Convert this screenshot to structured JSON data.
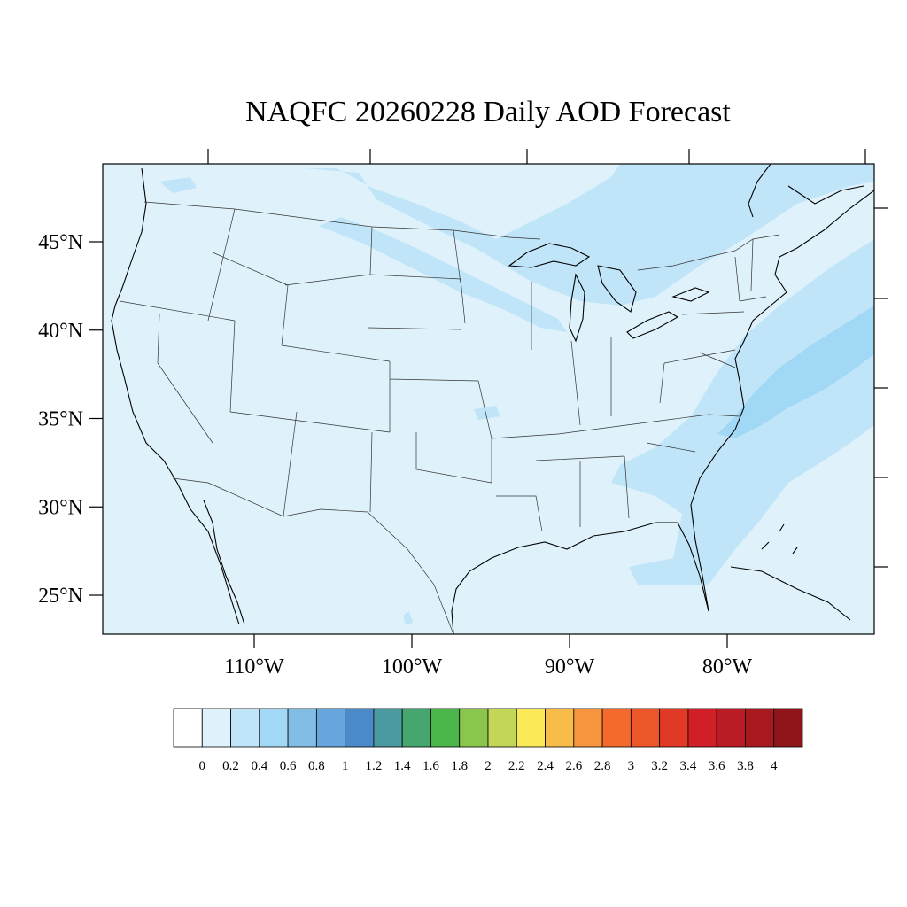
{
  "title": "NAQFC 20260228 Daily AOD Forecast",
  "map": {
    "lat_ticks": [
      {
        "value": 45,
        "label": "45°N"
      },
      {
        "value": 40,
        "label": "40°N"
      },
      {
        "value": 35,
        "label": "35°N"
      },
      {
        "value": 30,
        "label": "30°N"
      },
      {
        "value": 25,
        "label": "25°N"
      }
    ],
    "lon_ticks": [
      {
        "value": -110,
        "label": "110°W"
      },
      {
        "value": -100,
        "label": "100°W"
      },
      {
        "value": -90,
        "label": "90°W"
      },
      {
        "value": -80,
        "label": "80°W"
      }
    ],
    "background_color": "#dff2fb",
    "plume_colors": [
      "#c0e5f8",
      "#a1d8f5"
    ]
  },
  "colorbar": {
    "labels": [
      "0",
      "0.2",
      "0.4",
      "0.6",
      "0.8",
      "1",
      "1.2",
      "1.4",
      "1.6",
      "1.8",
      "2",
      "2.2",
      "2.4",
      "2.6",
      "2.8",
      "3",
      "3.2",
      "3.4",
      "3.6",
      "3.8",
      "4"
    ],
    "colors": [
      "#ffffff",
      "#dff2fb",
      "#c0e5f8",
      "#a1d8f5",
      "#82bde6",
      "#67a6dc",
      "#4a8ac8",
      "#4a9aa0",
      "#46a66f",
      "#4ab64a",
      "#8ac64c",
      "#c4d655",
      "#f9e858",
      "#f8bd48",
      "#f7963e",
      "#f36a2c",
      "#ec5628",
      "#e03a26",
      "#d01f26",
      "#bb1b24",
      "#a81a1f",
      "#8f151a"
    ]
  }
}
